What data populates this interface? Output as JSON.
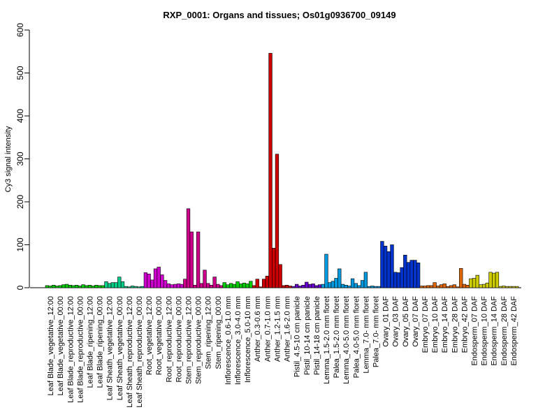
{
  "chart_data": {
    "type": "bar",
    "title": "RXP_0001: Organs and tissues; Os01g0936700_09149",
    "ylabel": "Cy3 signal intensity",
    "xlabel": "",
    "ylim": [
      0,
      600
    ],
    "yticks": [
      0,
      100,
      200,
      300,
      400,
      500,
      600
    ],
    "grid": false,
    "legend": "none",
    "categories": [
      "Leaf Blade_vegetative_12:00",
      "Leaf Blade_vegetative_00:00",
      "Leaf Blade_reproductive_12:00",
      "Leaf Blade_reproductive_00:00",
      "Leaf Blade_ripening_12:00",
      "Leaf Blade_ripening_00:00",
      "Leaf Sheath_vegetative_12:00",
      "Leaf Sheath_vegetative_00:00",
      "Leaf Sheath_reproductive_12:00",
      "Leaf Sheath_reproductive_00:00",
      "Root_vegetative_12:00",
      "Root_vegetative_00:00",
      "Root_reproductive_12:00",
      "Root_reproductive_00:00",
      "Stem_reproductive_12:00",
      "Stem_reproductive_00:00",
      "Stem_ripening_12:00",
      "Stem_ripening_00:00",
      "Inflorescence_0.6-1.0 mm",
      "Inflorescence_3.0-4.0 mm",
      "Inflorescence_5.0-10 mm",
      "Anther_0.3-0.6 mm",
      "Anther_0.7-1.0 mm",
      "Anther_1.2-1.5 mm",
      "Anther_1.6-2.0 mm",
      "Pistil_4.5-10 cm panicle",
      "Pistil_10-14 cm panicle",
      "Pistil_14-18 cm panicle",
      "Lemma_1.5-2.0 mm floret",
      "Palea_1.5-2.0 mm floret",
      "Lemma_4.0-5.0 mm floret",
      "Palea_4.0-5.0 mm floret",
      "Lemma_7.0- mm floret",
      "Palea_7.0- mm floret",
      "Ovary_01 DAF",
      "Ovary_03 DAF",
      "Ovary_05 DAF",
      "Ovary_07 DAF",
      "Embryo_07 DAF",
      "Embryo_10 DAF",
      "Embryo_14 DAF",
      "Embryo_28 DAF",
      "Embryo_42 DAF",
      "Endosperm_07 DAF",
      "Endosperm_10 DAF",
      "Endosperm_14 DAF",
      "Endosperm_28 DAF",
      "Endosperm_42 DAF"
    ],
    "colors": [
      "#00cc00",
      "#00cc00",
      "#00cc00",
      "#00cc00",
      "#00cc00",
      "#00cc00",
      "#00cc88",
      "#00cc88",
      "#00cc88",
      "#00cc88",
      "#cc00cc",
      "#cc00cc",
      "#cc00cc",
      "#cc00cc",
      "#cc0088",
      "#cc0088",
      "#cc0088",
      "#cc0088",
      "#00cc00",
      "#00cc00",
      "#00cc00",
      "#cc0000",
      "#cc0000",
      "#cc0000",
      "#cc0000",
      "#6600cc",
      "#6600cc",
      "#6600cc",
      "#0099dd",
      "#0099dd",
      "#0099dd",
      "#0099dd",
      "#0099dd",
      "#0099dd",
      "#0033cc",
      "#0033cc",
      "#0033cc",
      "#0033cc",
      "#dd6600",
      "#dd6600",
      "#dd6600",
      "#dd6600",
      "#dd6600",
      "#cccc00",
      "#cccc00",
      "#cccc00",
      "#cccc00",
      "#cccc00"
    ],
    "values": [
      [
        5,
        4,
        6
      ],
      [
        4,
        5,
        7
      ],
      [
        8,
        6,
        5
      ],
      [
        6,
        4,
        7
      ],
      [
        5,
        6,
        4
      ],
      [
        6,
        5,
        5
      ],
      [
        14,
        10,
        12
      ],
      [
        12,
        25,
        14
      ],
      [
        3,
        2,
        4
      ],
      [
        3,
        2,
        3
      ],
      [
        35,
        32,
        18
      ],
      [
        44,
        48,
        30
      ],
      [
        17,
        9,
        7
      ],
      [
        8,
        9,
        8
      ],
      [
        20,
        184,
        130
      ],
      [
        6,
        130,
        10
      ],
      [
        41,
        10,
        6
      ],
      [
        25,
        8,
        5
      ],
      [
        12,
        7,
        10
      ],
      [
        8,
        14,
        9
      ],
      [
        11,
        9,
        15
      ],
      [
        5,
        20,
        2
      ],
      [
        20,
        27,
        546
      ],
      [
        92,
        311,
        54
      ],
      [
        5,
        6,
        4
      ],
      [
        3,
        8,
        4
      ],
      [
        6,
        13,
        8
      ],
      [
        9,
        5,
        7
      ],
      [
        8,
        78,
        12
      ],
      [
        15,
        22,
        44
      ],
      [
        8,
        6,
        4
      ],
      [
        21,
        10,
        5
      ],
      [
        17,
        36,
        3
      ],
      [
        4,
        3,
        3
      ],
      [
        108,
        97,
        84
      ],
      [
        100,
        36,
        35
      ],
      [
        47,
        76,
        59
      ],
      [
        64,
        64,
        58
      ],
      [
        4,
        4,
        5
      ],
      [
        5,
        12,
        4
      ],
      [
        7,
        9,
        3
      ],
      [
        5,
        7,
        2
      ],
      [
        45,
        8,
        6
      ],
      [
        21,
        22,
        29
      ],
      [
        7,
        8,
        11
      ],
      [
        36,
        34,
        36
      ],
      [
        3,
        4,
        3
      ],
      [
        3,
        3,
        3
      ]
    ]
  }
}
